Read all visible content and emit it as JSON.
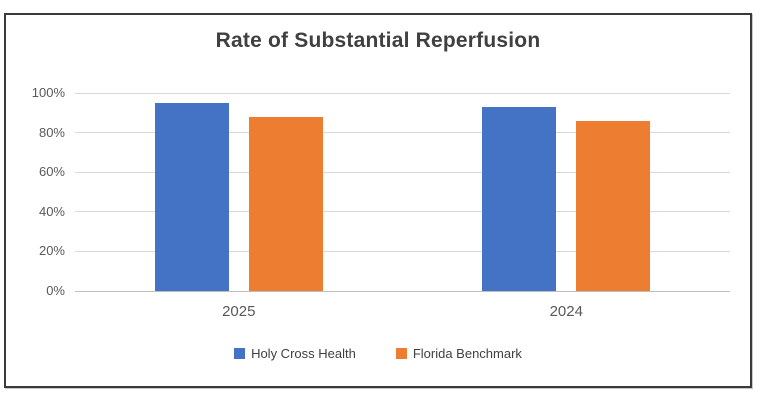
{
  "chart_data": {
    "type": "bar",
    "title": "Rate of Substantial Reperfusion",
    "categories": [
      "2025",
      "2024"
    ],
    "series": [
      {
        "name": "Holy Cross Health",
        "color": "#4472C4",
        "values": [
          95,
          93
        ]
      },
      {
        "name": "Florida Benchmark",
        "color": "#ED7D31",
        "values": [
          88,
          86
        ]
      }
    ],
    "xlabel": "",
    "ylabel": "",
    "ylim": [
      0,
      100
    ],
    "ytick_labels": [
      "100%",
      "80%",
      "60%",
      "40%",
      "20%",
      "0%"
    ],
    "ytick_values": [
      100,
      80,
      60,
      40,
      20,
      0
    ],
    "grid": true,
    "legend_position": "bottom"
  },
  "colors": {
    "series_blue": "#4472C4",
    "series_orange": "#ED7D31",
    "title_text": "#404040",
    "axis_text": "#595959",
    "gridline": "#D9D9D9",
    "frame_border": "#3A3A3A"
  }
}
